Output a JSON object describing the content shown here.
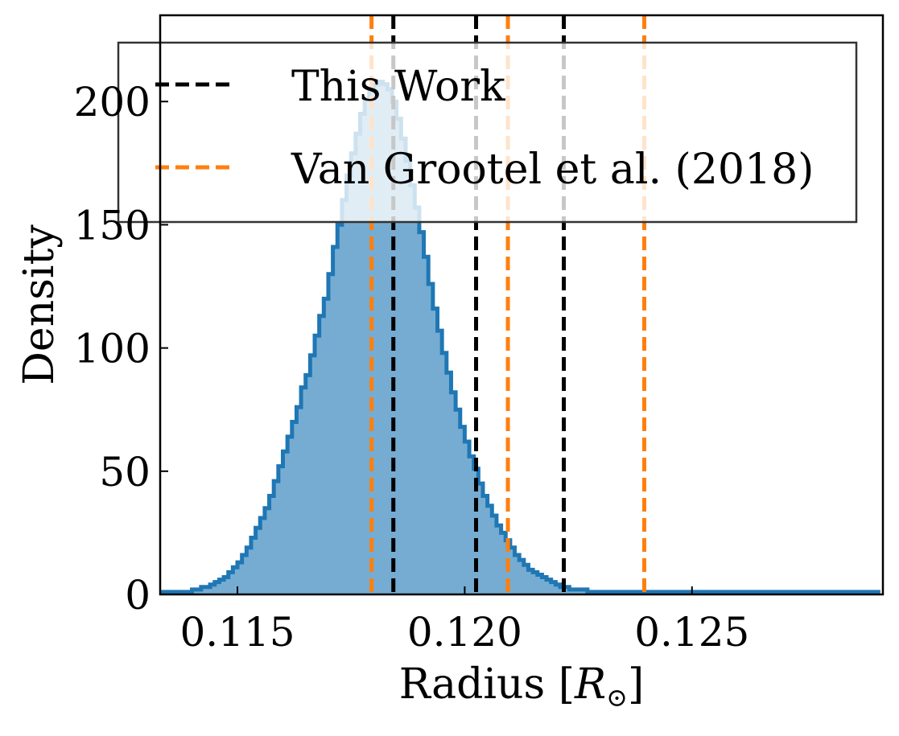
{
  "chart_data": {
    "type": "histogram",
    "title": "",
    "xlabel": "Radius [",
    "xlabel_symbol": "R",
    "xlabel_subscript": "⊙",
    "xlabel_close": "]",
    "ylabel": "Density",
    "xlim": [
      0.1133,
      0.1292
    ],
    "ylim": [
      0,
      235
    ],
    "xticks": [
      0.115,
      0.12,
      0.125
    ],
    "xtick_labels": [
      "0.115",
      "0.120",
      "0.125"
    ],
    "yticks": [
      0,
      50,
      100,
      150,
      200
    ],
    "ytick_labels": [
      "0",
      "50",
      "100",
      "150",
      "200"
    ],
    "grid": false,
    "legend_position": "upper-center",
    "histogram": {
      "fill_color": "#76acd2",
      "edge_color": "#1f77b4",
      "bin_width": 0.0001,
      "bins_start": 0.1133,
      "densities": [
        1,
        1,
        1,
        1,
        1,
        1,
        1,
        2,
        2,
        3,
        3,
        4,
        5,
        6,
        7,
        9,
        11,
        13,
        16,
        19,
        23,
        27,
        31,
        35,
        40,
        46,
        52,
        58,
        64,
        70,
        76,
        84,
        89,
        97,
        105,
        113,
        120,
        130,
        141,
        150,
        160,
        170,
        179,
        187,
        195,
        201,
        205,
        207,
        208,
        207,
        205,
        200,
        193,
        185,
        176,
        166,
        157,
        147,
        137,
        126,
        116,
        107,
        98,
        90,
        82,
        75,
        68,
        62,
        56,
        51,
        45,
        40,
        36,
        32,
        28,
        25,
        22,
        19,
        16,
        14,
        12,
        10,
        9,
        8,
        7,
        6,
        5,
        4,
        3,
        3,
        2,
        2,
        2,
        2,
        1,
        1,
        1,
        1,
        1,
        1,
        1,
        1,
        1,
        1,
        1,
        1,
        1,
        1,
        1,
        1,
        1,
        1,
        1,
        1,
        1,
        1,
        1,
        1,
        1,
        1,
        1,
        1,
        1,
        1,
        1,
        1,
        1,
        1,
        1,
        1,
        1,
        1,
        1,
        1,
        1,
        1,
        1,
        1,
        1,
        1,
        1,
        1,
        1,
        1,
        1,
        1,
        1,
        1,
        1,
        1,
        1,
        1,
        1,
        1,
        1,
        1,
        1,
        1
      ]
    },
    "series": [
      {
        "name": "This Work",
        "color": "#000000",
        "style": "dashed",
        "values": [
          0.11843,
          0.12025,
          0.12218
        ]
      },
      {
        "name": "Van Grootel et al. (2018)",
        "color": "#ff7f0e",
        "style": "dashed",
        "values": [
          0.11795,
          0.12095,
          0.12395
        ]
      }
    ]
  }
}
